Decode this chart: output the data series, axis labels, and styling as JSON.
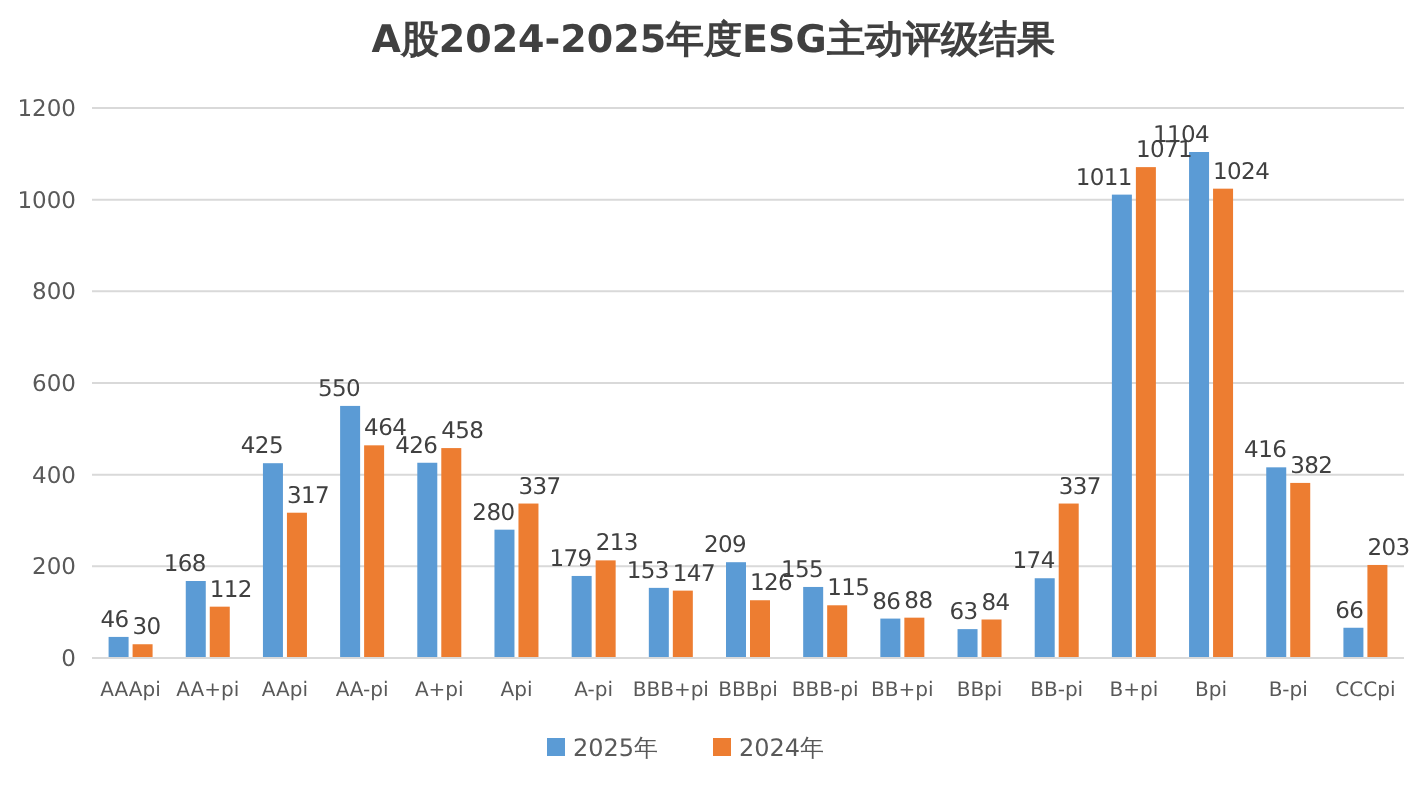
{
  "chart_data": {
    "type": "bar",
    "title": "A股2024-2025年度ESG主动评级结果",
    "categories": [
      "AAApi",
      "AA+pi",
      "AApi",
      "AA-pi",
      "A+pi",
      "Api",
      "A-pi",
      "BBB+pi",
      "BBBpi",
      "BBB-pi",
      "BB+pi",
      "BBpi",
      "BB-pi",
      "B+pi",
      "Bpi",
      "B-pi",
      "CCCpi"
    ],
    "series": [
      {
        "name": "2025年",
        "color": "#5b9bd5",
        "values": [
          46,
          168,
          425,
          550,
          426,
          280,
          179,
          153,
          209,
          155,
          86,
          63,
          174,
          1011,
          1104,
          416,
          66
        ]
      },
      {
        "name": "2024年",
        "color": "#ed7d31",
        "values": [
          30,
          112,
          317,
          464,
          458,
          337,
          213,
          147,
          126,
          115,
          88,
          84,
          337,
          1071,
          1024,
          382,
          203
        ]
      }
    ],
    "ylim": [
      0,
      1200
    ],
    "yticks": [
      0,
      200,
      400,
      600,
      800,
      1000,
      1200
    ],
    "grid": "y",
    "legend": "bottom",
    "data_labels": true
  }
}
